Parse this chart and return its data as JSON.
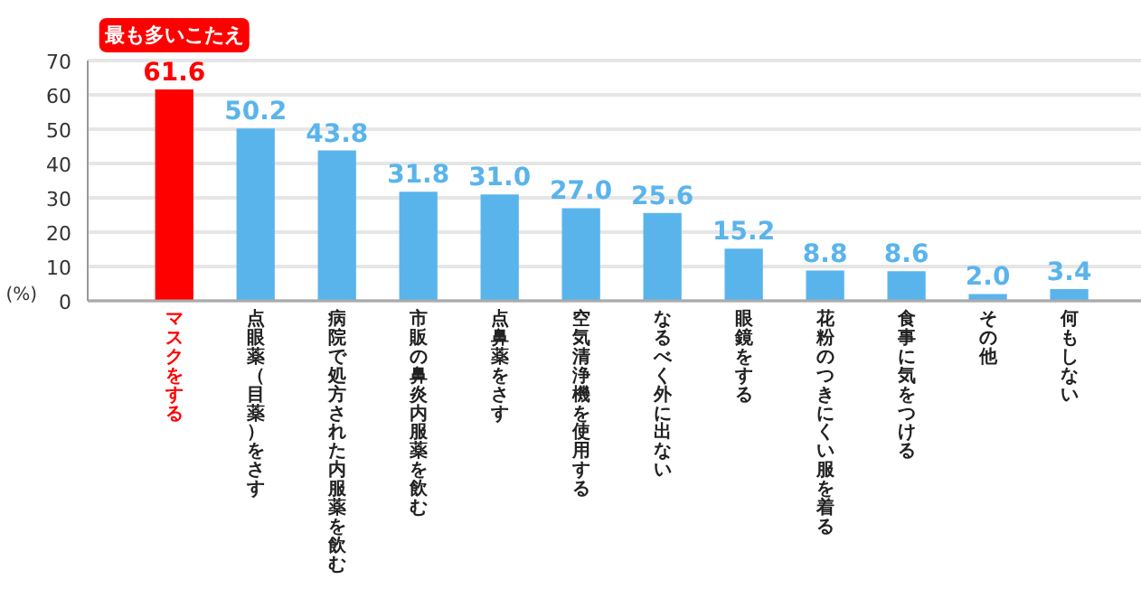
{
  "chart_data": {
    "type": "bar",
    "categories": [
      "マスクをする",
      "点眼薬（目薬）をさす",
      "病院で処方された内服薬を飲む",
      "市販の鼻炎内服薬を飲む",
      "点鼻薬をさす",
      "空気清浄機を使用する",
      "なるべく外に出ない",
      "眼鏡をする",
      "花粉のつきにくい服を着る",
      "食事に気をつける",
      "その他",
      "何もしない"
    ],
    "values": [
      61.6,
      50.2,
      43.8,
      31.8,
      31.0,
      27.0,
      25.6,
      15.2,
      8.8,
      8.6,
      2.0,
      3.4
    ],
    "colors": [
      "#ff0000",
      "#5ab4ec",
      "#5ab4ec",
      "#5ab4ec",
      "#5ab4ec",
      "#5ab4ec",
      "#5ab4ec",
      "#5ab4ec",
      "#5ab4ec",
      "#5ab4ec",
      "#5ab4ec",
      "#5ab4ec"
    ],
    "ylabel": "(%)",
    "ylim": [
      0,
      70
    ],
    "yticks": [
      0,
      10,
      20,
      30,
      40,
      50,
      60,
      70
    ],
    "grid": "y",
    "value_labels": [
      "61.6",
      "50.2",
      "43.8",
      "31.8",
      "31.0",
      "27.0",
      "25.6",
      "15.2",
      "8.8",
      "8.6",
      "2.0",
      "3.4"
    ],
    "annotations": [
      {
        "text": "最も多いこたえ",
        "x": "マスクをする",
        "y": 61.6
      }
    ]
  }
}
